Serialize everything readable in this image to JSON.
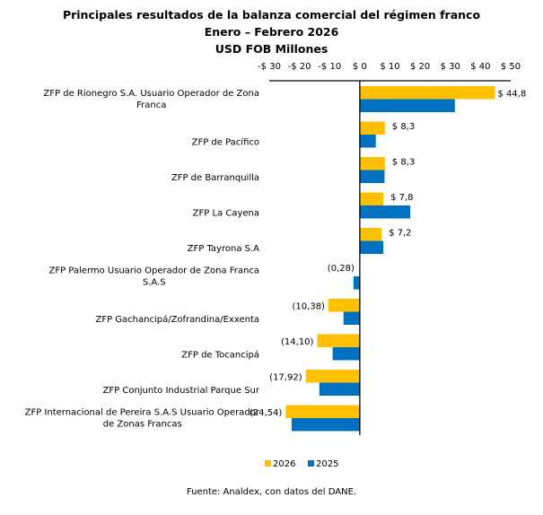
{
  "chart_data": {
    "type": "bar",
    "orientation": "horizontal",
    "title": "Principales resultados de la balanza comercial del régimen franco",
    "subtitle": "Enero – Febrero 2026",
    "unit_label": "USD FOB Millones",
    "xlabel": "",
    "ylabel": "",
    "xlim": [
      -30,
      50
    ],
    "x_ticks": [
      -30,
      -20,
      -10,
      0,
      10,
      20,
      30,
      40,
      50
    ],
    "x_tick_labels": [
      "-$ 30",
      "-$ 20",
      "-$ 10",
      "$ 0",
      "$ 10",
      "$ 20",
      "$ 30",
      "$ 40",
      "$ 50"
    ],
    "x_axis_position": "top",
    "grid": false,
    "legend_position": "bottom",
    "categories": [
      [
        "ZFP de Rionegro S.A. Usuario Operador de Zona",
        "Franca"
      ],
      [
        "ZFP de Pacífico"
      ],
      [
        "ZFP de Barranquilla"
      ],
      [
        "ZFP La Cayena"
      ],
      [
        "ZFP Tayrona S.A"
      ],
      [
        "ZFP Palermo Usuario Operador de Zona Franca",
        "S.A.S"
      ],
      [
        "ZFP Gachancipá/Zofrandina/Exxenta"
      ],
      [
        "ZFP de Tocancipá"
      ],
      [
        "ZFP Conjunto Industrial Parque Sur"
      ],
      [
        "ZFP Internacional de Pereira S.A.S Usuario Operador",
        "de Zonas Francas"
      ]
    ],
    "series": [
      {
        "name": "2026",
        "color": "#FFC000",
        "values": [
          44.8,
          8.3,
          8.3,
          7.8,
          7.2,
          null,
          -10.38,
          -14.1,
          -17.92,
          -24.54
        ],
        "data_labels": [
          "$ 44,8",
          "$ 8,3",
          "$ 8,3",
          "$ 7,8",
          "$ 7,2",
          "(0,28)",
          "(10,38)",
          "(14,10)",
          "(17,92)",
          "(24,54)"
        ]
      },
      {
        "name": "2025",
        "color": "#0070C0",
        "values": [
          31.5,
          5.3,
          8.2,
          16.7,
          7.8,
          -2.1,
          -5.4,
          -9.0,
          -13.4,
          -22.6
        ]
      }
    ],
    "notes": "The 2026 Palermo value is shown only as label (0,28), i.e. -0.28; its bar is negligible.",
    "source": "Fuente: Analdex, con datos del DANE."
  }
}
